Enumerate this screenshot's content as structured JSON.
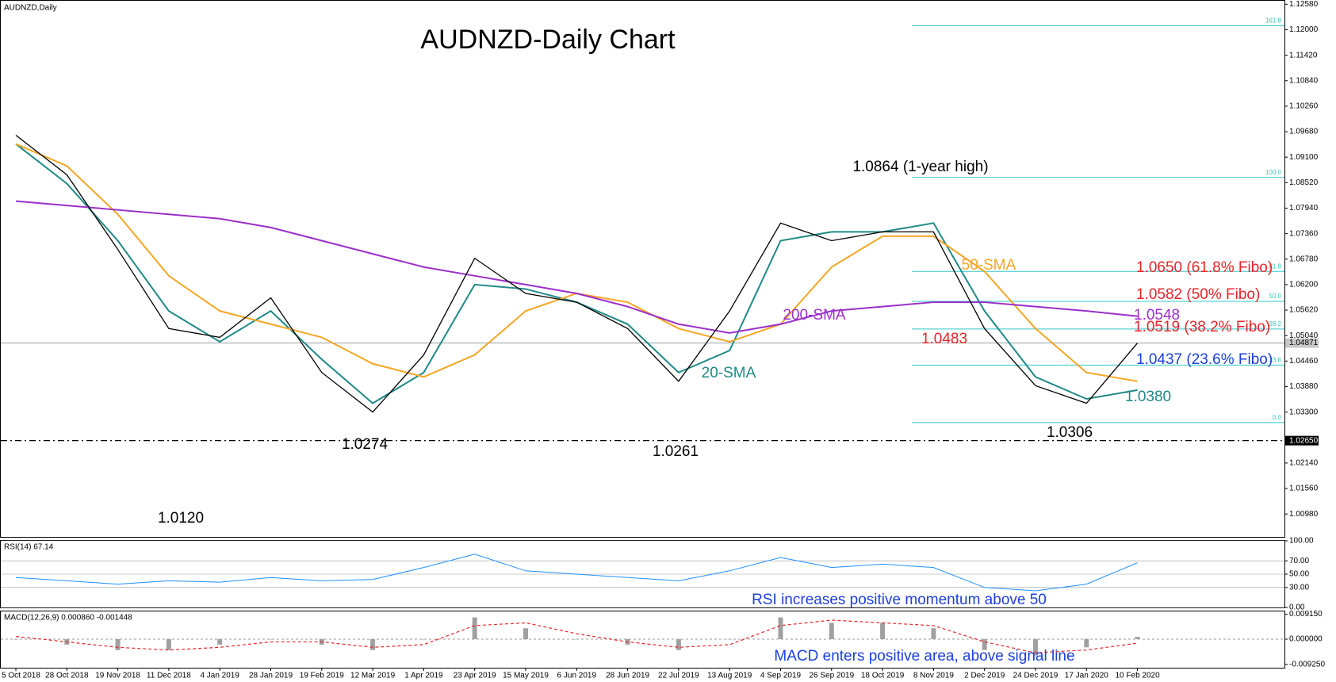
{
  "header": "AUDNZD,Daily",
  "chart_data": [
    {
      "type": "line",
      "title": "AUDNZD-Daily Chart",
      "categories": [
        "5 Oct 2018",
        "28 Oct 2018",
        "19 Nov 2018",
        "11 Dec 2018",
        "4 Jan 2019",
        "28 Jan 2019",
        "19 Feb 2019",
        "12 Mar 2019",
        "1 Apr 2019",
        "23 Apr 2019",
        "15 May 2019",
        "6 Jun 2019",
        "28 Jun 2019",
        "22 Jul 2019",
        "13 Aug 2019",
        "4 Sep 2019",
        "26 Sep 2019",
        "18 Oct 2019",
        "8 Nov 2019",
        "2 Dec 2019",
        "24 Dec 2019",
        "17 Jan 2020",
        "10 Feb 2020"
      ],
      "values": [
        1.096,
        1.087,
        1.07,
        1.052,
        1.05,
        1.059,
        1.042,
        1.033,
        1.046,
        1.068,
        1.06,
        1.058,
        1.052,
        1.04,
        1.056,
        1.076,
        1.072,
        1.074,
        1.074,
        1.052,
        1.039,
        1.035,
        1.0487
      ],
      "color": "#000000",
      "series": [
        {
          "name": "20-SMA",
          "color": "#1f8a86",
          "values": [
            1.094,
            1.085,
            1.072,
            1.056,
            1.049,
            1.056,
            1.045,
            1.035,
            1.042,
            1.062,
            1.061,
            1.058,
            1.053,
            1.042,
            1.047,
            1.072,
            1.074,
            1.074,
            1.076,
            1.056,
            1.041,
            1.036,
            1.038
          ]
        },
        {
          "name": "50-SMA",
          "color": "#f5a623",
          "values": [
            1.094,
            1.089,
            1.078,
            1.064,
            1.056,
            1.053,
            1.05,
            1.044,
            1.041,
            1.046,
            1.056,
            1.06,
            1.058,
            1.052,
            1.049,
            1.053,
            1.066,
            1.073,
            1.073,
            1.065,
            1.052,
            1.042,
            1.04
          ]
        },
        {
          "name": "200-SMA",
          "color": "#9b2fc9",
          "values": [
            1.081,
            1.08,
            1.079,
            1.078,
            1.077,
            1.075,
            1.072,
            1.069,
            1.066,
            1.064,
            1.062,
            1.06,
            1.057,
            1.053,
            1.051,
            1.053,
            1.056,
            1.057,
            1.058,
            1.058,
            1.057,
            1.056,
            1.0548
          ]
        }
      ],
      "ylim": [
        1.0046,
        1.1264
      ],
      "yticks": [
        {
          "value": 1.1258,
          "label": "1.12580"
        },
        {
          "value": 1.12,
          "label": "1.12000"
        },
        {
          "value": 1.1142,
          "label": "1.11420"
        },
        {
          "value": 1.1084,
          "label": "1.10840"
        },
        {
          "value": 1.1026,
          "label": "1.10260"
        },
        {
          "value": 1.0968,
          "label": "1.09680"
        },
        {
          "value": 1.091,
          "label": "1.09100"
        },
        {
          "value": 1.0852,
          "label": "1.08520"
        },
        {
          "value": 1.0794,
          "label": "1.07940"
        },
        {
          "value": 1.0736,
          "label": "1.07360"
        },
        {
          "value": 1.0678,
          "label": "1.06780"
        },
        {
          "value": 1.062,
          "label": "1.06200"
        },
        {
          "value": 1.0562,
          "label": "1.05620"
        },
        {
          "value": 1.0504,
          "label": "1.05040"
        },
        {
          "value": 1.0446,
          "label": "1.04460"
        },
        {
          "value": 1.0388,
          "label": "1.03880"
        },
        {
          "value": 1.033,
          "label": "1.03300"
        },
        {
          "value": 1.0214,
          "label": "1.02140"
        },
        {
          "value": 1.0156,
          "label": "1.01560"
        },
        {
          "value": 1.0098,
          "label": "1.00980"
        }
      ],
      "fibo_color": "#33c8c8",
      "fibo_levels": [
        {
          "value": 1.0306,
          "label": "0.0"
        },
        {
          "value": 1.0437,
          "label": "23.6"
        },
        {
          "value": 1.0519,
          "label": "38.2"
        },
        {
          "value": 1.0582,
          "label": "50.0"
        },
        {
          "value": 1.065,
          "label": "61.8"
        },
        {
          "value": 1.0864,
          "label": "100.0"
        },
        {
          "value": 1.1209,
          "label": "161.8"
        }
      ],
      "price_line": {
        "value": 1.04871,
        "label": "1.04871"
      },
      "support_line": {
        "value": 1.0265,
        "label": "1.02650"
      },
      "annotations": [
        {
          "text": "1.0864 (1-year high)",
          "color": "#000000"
        },
        {
          "text": "1.0650 (61.8% Fibo)",
          "color": "#e8242a"
        },
        {
          "text": "1.0582 (50% Fibo)",
          "color": "#e8242a"
        },
        {
          "text": "1.0548",
          "color": "#9b2fc9"
        },
        {
          "text": "1.0519 (38.2% Fibo)",
          "color": "#e8242a"
        },
        {
          "text": "1.0483",
          "color": "#e8242a"
        },
        {
          "text": "1.0437 (23.6% Fibo)",
          "color": "#1b3fe0"
        },
        {
          "text": "1.0380",
          "color": "#1f8a86"
        },
        {
          "text": "1.0306",
          "color": "#000000"
        },
        {
          "text": "1.0274",
          "color": "#000000"
        },
        {
          "text": "1.0261",
          "color": "#000000"
        },
        {
          "text": "1.0120",
          "color": "#000000"
        }
      ]
    },
    {
      "type": "line",
      "title": "RSI(14) 67.14",
      "values": [
        45,
        40,
        35,
        40,
        38,
        45,
        40,
        42,
        60,
        80,
        55,
        50,
        45,
        40,
        55,
        75,
        60,
        65,
        60,
        30,
        25,
        35,
        67.14
      ],
      "color": "#1e90ff",
      "ylim": [
        0,
        100
      ],
      "yticks": [
        {
          "value": 100,
          "label": "100.00"
        },
        {
          "value": 70,
          "label": "70.00"
        },
        {
          "value": 50,
          "label": "50.00"
        },
        {
          "value": 30,
          "label": "30.00"
        },
        {
          "value": 0,
          "label": "0.00"
        }
      ],
      "grid": true,
      "annotation": {
        "text": "RSI increases positive momentum above 50",
        "color": "#1b3fe0"
      }
    },
    {
      "type": "bar",
      "title": "MACD(12,26,9) 0.000860 -0.001448",
      "values": [
        0,
        -0.002,
        -0.004,
        -0.004,
        -0.002,
        0,
        -0.002,
        -0.004,
        0,
        0.008,
        0.004,
        0,
        -0.002,
        -0.004,
        0,
        0.008,
        0.006,
        0.006,
        0.004,
        -0.004,
        -0.006,
        -0.003,
        0.00086
      ],
      "color": "#a0a0a0",
      "signal": {
        "color": "#e8242a",
        "values": [
          0.001,
          -0.001,
          -0.003,
          -0.004,
          -0.003,
          -0.001,
          -0.001,
          -0.003,
          -0.002,
          0.005,
          0.006,
          0.002,
          -0.001,
          -0.003,
          -0.002,
          0.005,
          0.007,
          0.006,
          0.005,
          -0.001,
          -0.005,
          -0.004,
          -0.001448
        ]
      },
      "ylim": [
        -0.0105,
        0.0102
      ],
      "yticks": [
        {
          "value": 0.00915,
          "label": "0.009150"
        },
        {
          "value": 0,
          "label": "0.000000"
        },
        {
          "value": -0.00925,
          "label": "-0.009250"
        }
      ],
      "annotation": {
        "text": "MACD enters positive area, above signal line",
        "color": "#1b3fe0"
      }
    }
  ]
}
